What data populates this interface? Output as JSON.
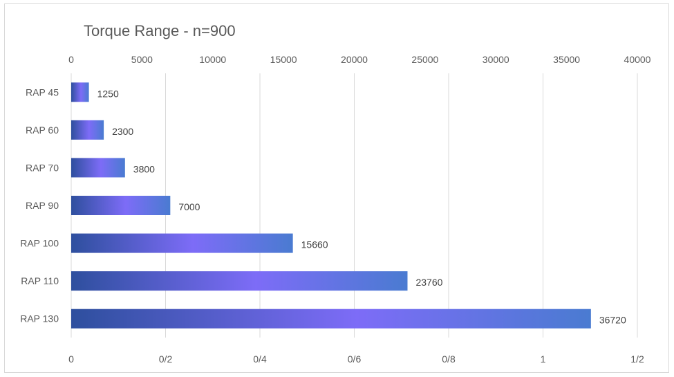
{
  "chart_data": {
    "type": "bar",
    "orientation": "horizontal",
    "title": "Torque Range - n=900",
    "categories": [
      "RAP 45",
      "RAP 60",
      "RAP 70",
      "RAP 90",
      "RAP 100",
      "RAP 110",
      "RAP 130"
    ],
    "values": [
      1250,
      2300,
      3800,
      7000,
      15660,
      23760,
      36720
    ],
    "data_labels": [
      "1250",
      "2300",
      "3800",
      "7000",
      "15660",
      "23760",
      "36720"
    ],
    "primary_axis": {
      "position": "top",
      "range": [
        0,
        40000
      ],
      "ticks": [
        "0",
        "5000",
        "10000",
        "15000",
        "20000",
        "25000",
        "30000",
        "35000",
        "40000"
      ]
    },
    "secondary_axis": {
      "position": "bottom",
      "ticks": [
        "0",
        "0/2",
        "0/4",
        "0/6",
        "0/8",
        "1",
        "1/2"
      ]
    },
    "grid": true,
    "legend": "none",
    "colors": {
      "bar_edge": "#2f4fa0",
      "bar_mid": "#7b6cf6",
      "bar_end": "#4a7bd0",
      "grid": "#d9d9d9"
    }
  }
}
